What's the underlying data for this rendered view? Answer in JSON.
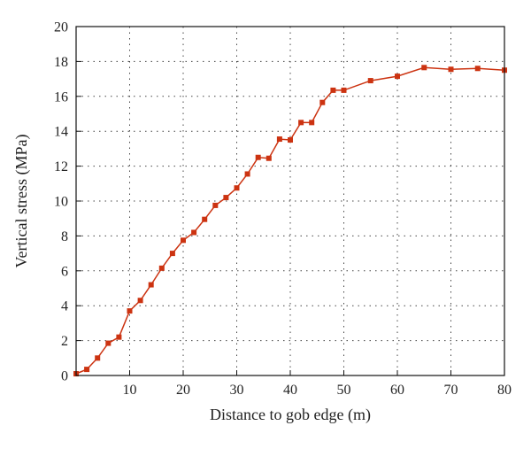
{
  "chart_data": {
    "type": "line",
    "title": "",
    "xlabel": "Distance to gob edge (m)",
    "ylabel": "Vertical stress (MPa)",
    "xlim": [
      0,
      80
    ],
    "ylim": [
      0,
      20
    ],
    "xticks": [
      10,
      20,
      30,
      40,
      50,
      60,
      70,
      80
    ],
    "yticks": [
      0,
      2,
      4,
      6,
      8,
      10,
      12,
      14,
      16,
      18,
      20
    ],
    "grid": true,
    "legend": "none",
    "series": [
      {
        "color": "#cc3311",
        "marker": "square",
        "x": [
          0,
          2,
          4,
          6,
          8,
          10,
          12,
          14,
          16,
          18,
          20,
          22,
          24,
          26,
          28,
          30,
          32,
          34,
          36,
          38,
          40,
          42,
          44,
          46,
          48,
          50,
          55,
          60,
          65,
          70,
          75,
          80
        ],
        "y": [
          0.1,
          0.35,
          1.0,
          1.85,
          2.2,
          3.7,
          4.3,
          5.2,
          6.15,
          7.0,
          7.75,
          8.2,
          8.95,
          9.75,
          10.2,
          10.75,
          11.55,
          12.5,
          12.45,
          13.55,
          13.5,
          14.5,
          14.5,
          15.65,
          16.35,
          16.35,
          16.9,
          17.15,
          17.65,
          17.55,
          17.6,
          17.5
        ]
      }
    ]
  }
}
